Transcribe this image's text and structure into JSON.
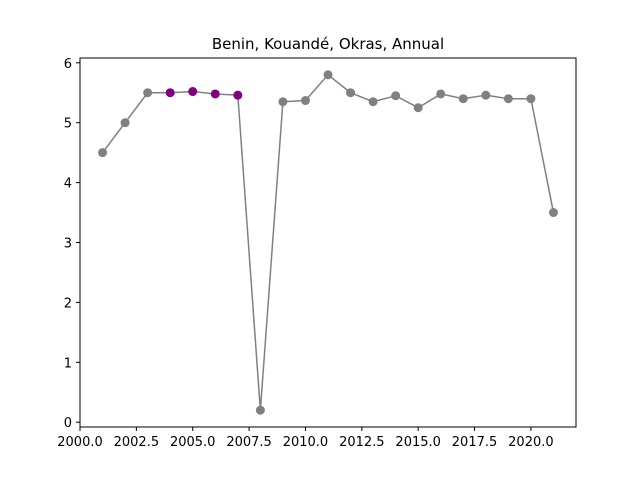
{
  "chart_data": {
    "type": "line",
    "title": "Benin, Kouandé, Okras, Annual",
    "xlabel": "",
    "ylabel": "",
    "xlim": [
      2000.0,
      2022.0
    ],
    "ylim": [
      -0.08,
      6.08
    ],
    "x_ticks": [
      2000.0,
      2002.5,
      2005.0,
      2007.5,
      2010.0,
      2012.5,
      2015.0,
      2017.5,
      2020.0
    ],
    "x_tick_labels": [
      "2000.0",
      "2002.5",
      "2005.0",
      "2007.5",
      "2010.0",
      "2012.5",
      "2015.0",
      "2017.5",
      "2020.0"
    ],
    "y_ticks": [
      0,
      1,
      2,
      3,
      4,
      5,
      6
    ],
    "y_tick_labels": [
      "0",
      "1",
      "2",
      "3",
      "4",
      "5",
      "6"
    ],
    "grid": false,
    "colors": {
      "line": "#808080",
      "marker": "#808080",
      "highlight": "#800080"
    },
    "series": [
      {
        "x": [
          2001,
          2002,
          2003,
          2004,
          2005,
          2006,
          2007,
          2008,
          2009,
          2010,
          2011,
          2012,
          2013,
          2014,
          2015,
          2016,
          2017,
          2018,
          2019,
          2020,
          2021
        ],
        "y": [
          4.5,
          5.0,
          5.5,
          5.5,
          5.52,
          5.48,
          5.46,
          0.2,
          5.35,
          5.37,
          5.8,
          5.5,
          5.35,
          5.45,
          5.25,
          5.48,
          5.4,
          5.46,
          5.4,
          5.4,
          3.5
        ],
        "highlight_x": [
          2004,
          2005,
          2006,
          2007
        ]
      }
    ]
  }
}
